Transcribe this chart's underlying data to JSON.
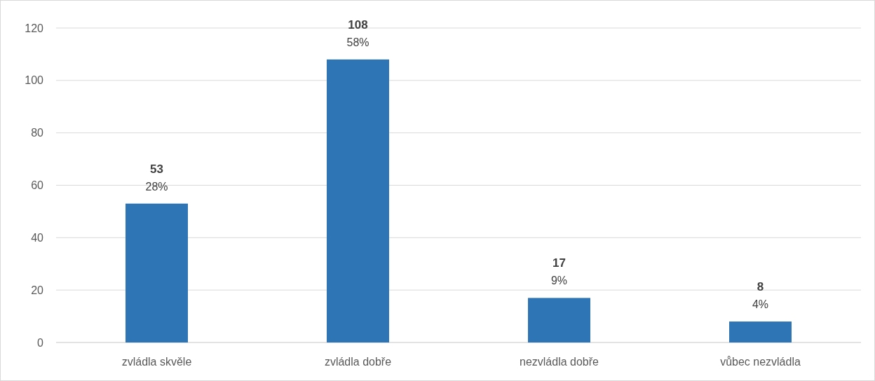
{
  "chart_data": {
    "type": "bar",
    "categories": [
      "zvládla skvěle",
      "zvládla dobře",
      "nezvládla dobře",
      "vůbec nezvládla"
    ],
    "values": [
      53,
      108,
      17,
      8
    ],
    "color": "#2e75b6",
    "ylim": [
      0,
      120
    ],
    "yticks": [
      0,
      20,
      40,
      60,
      80,
      100,
      120
    ],
    "grid": "y",
    "data_labels": true,
    "annotations": [
      {
        "text": "28%",
        "x": "zvládla skvěle",
        "y": 53
      },
      {
        "text": "58%",
        "x": "zvládla dobře",
        "y": 108
      },
      {
        "text": "9%",
        "x": "nezvládla dobře",
        "y": 17
      },
      {
        "text": "4%",
        "x": "vůbec nezvládla",
        "y": 8
      }
    ]
  }
}
